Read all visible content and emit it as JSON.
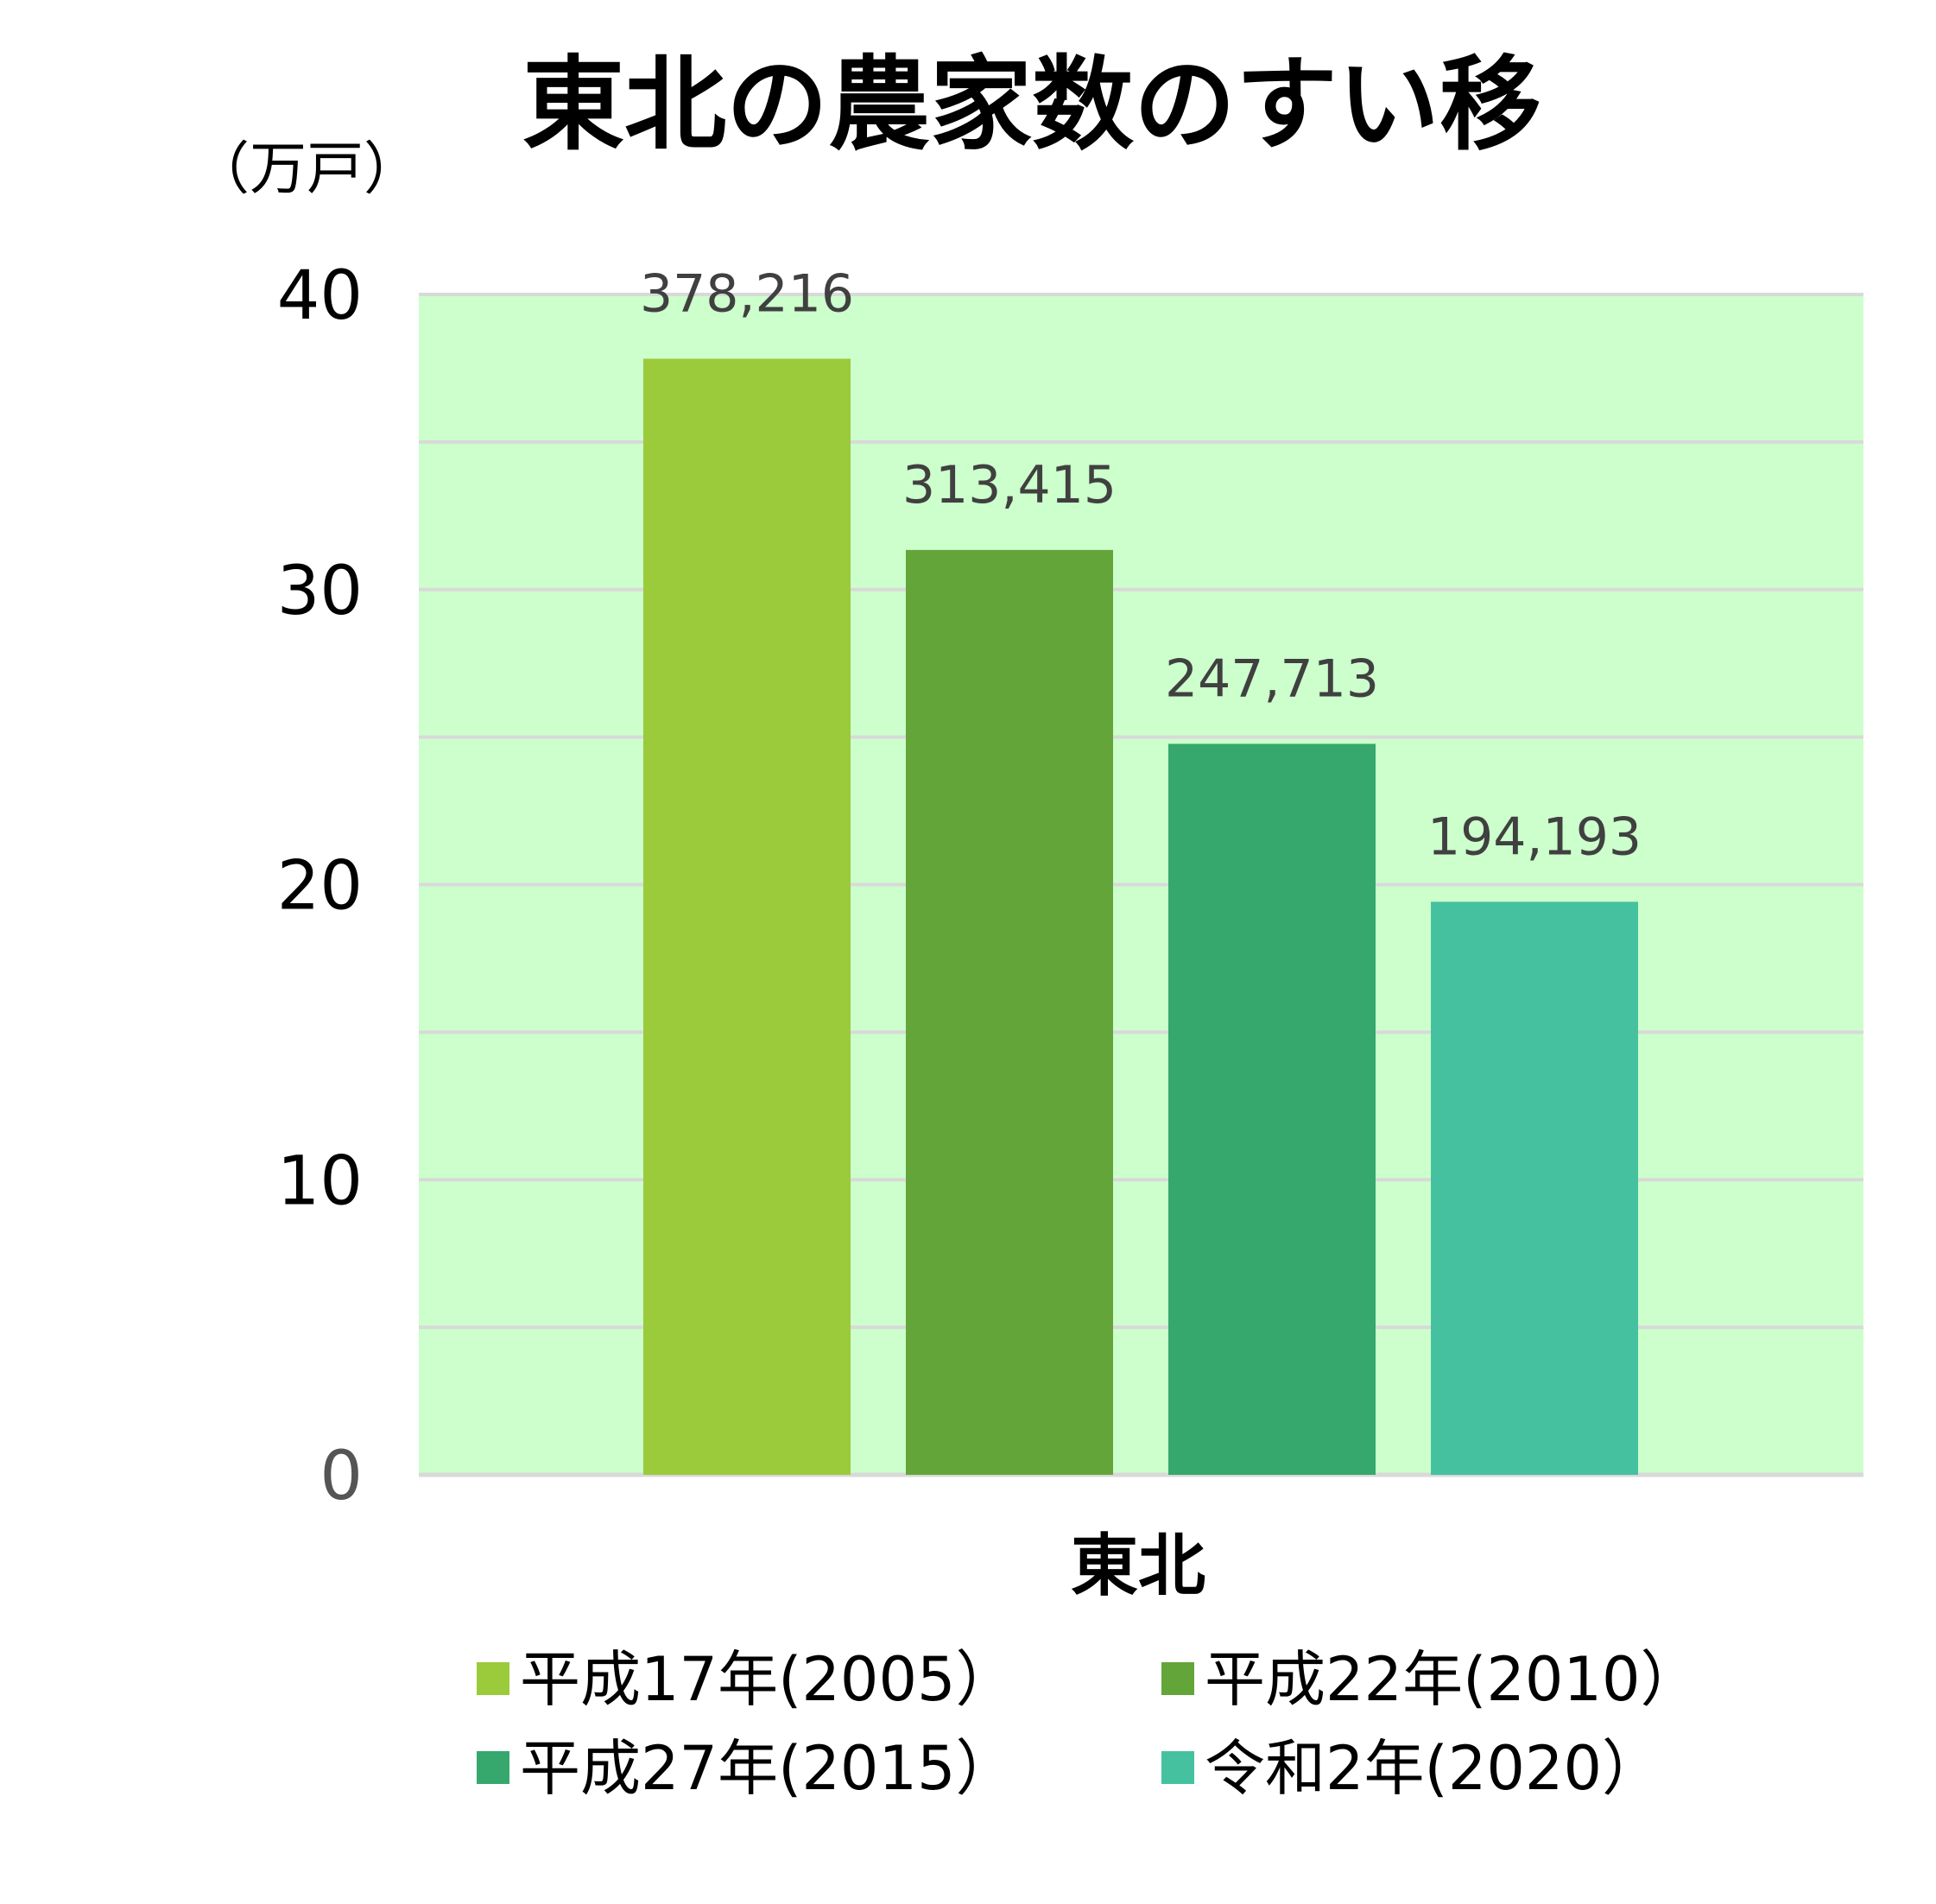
{
  "chart_data": {
    "type": "bar",
    "title": "東北の農家数のすい移",
    "ylabel": "（万戸）",
    "categories": [
      "東北"
    ],
    "ylim": [
      0,
      40
    ],
    "yticks": [
      "0",
      "10",
      "20",
      "30",
      "40"
    ],
    "grid": true,
    "legend_position": "bottom",
    "series": [
      {
        "name": "平成17年(2005）",
        "values": [
          37.8216
        ],
        "label": "378,216",
        "color": "#9bca3b"
      },
      {
        "name": "平成22年(2010）",
        "values": [
          31.3415
        ],
        "label": "313,415",
        "color": "#64a53a"
      },
      {
        "name": "平成27年(2015）",
        "values": [
          24.7713
        ],
        "label": "247,713",
        "color": "#36a86d"
      },
      {
        "name": "令和2年(2020）",
        "values": [
          19.4193
        ],
        "label": "194,193",
        "color": "#45c19f"
      }
    ]
  },
  "colors": {
    "plot_background": "#ccffcc",
    "gridline": "#d9d9d9"
  }
}
